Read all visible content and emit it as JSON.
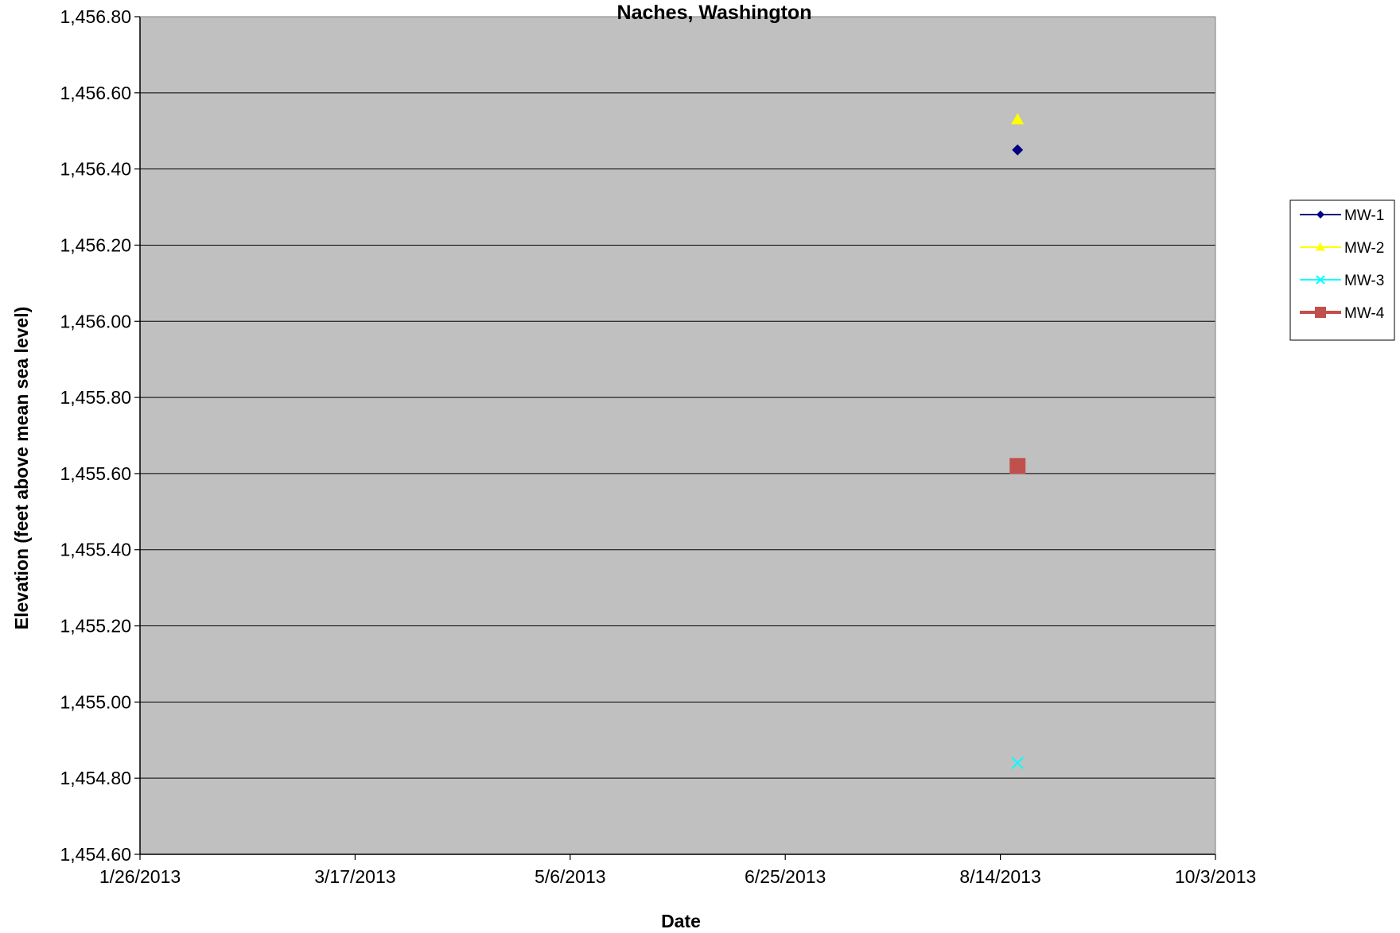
{
  "chart_data": {
    "type": "scatter",
    "title": "Naches, Washington",
    "xlabel": "Date",
    "ylabel": "Elevation (feet above mean sea level)",
    "x_ticks": [
      "1/26/2013",
      "3/17/2013",
      "5/6/2013",
      "6/25/2013",
      "8/14/2013",
      "10/3/2013"
    ],
    "x_range": [
      "1/26/2013",
      "10/3/2013"
    ],
    "y_ticks": [
      "1,454.60",
      "1,454.80",
      "1,455.00",
      "1,455.20",
      "1,455.40",
      "1,455.60",
      "1,455.80",
      "1,456.00",
      "1,456.20",
      "1,456.40",
      "1,456.60",
      "1,456.80"
    ],
    "ylim": [
      1454.6,
      1456.8
    ],
    "grid": true,
    "legend_position": "right",
    "plot_background": "#C0C0C0",
    "series": [
      {
        "name": "MW-1",
        "marker": "diamond",
        "color": "#000080",
        "points": [
          {
            "x": "8/18/2013",
            "y": 1456.45
          }
        ]
      },
      {
        "name": "MW-2",
        "marker": "triangle",
        "color": "#FFFF00",
        "points": [
          {
            "x": "8/18/2013",
            "y": 1456.53
          }
        ]
      },
      {
        "name": "MW-3",
        "marker": "x",
        "color": "#00FFFF",
        "points": [
          {
            "x": "8/18/2013",
            "y": 1454.84
          }
        ]
      },
      {
        "name": "MW-4",
        "marker": "square",
        "color": "#C0504D",
        "points": [
          {
            "x": "8/18/2013",
            "y": 1455.62
          }
        ]
      }
    ]
  }
}
